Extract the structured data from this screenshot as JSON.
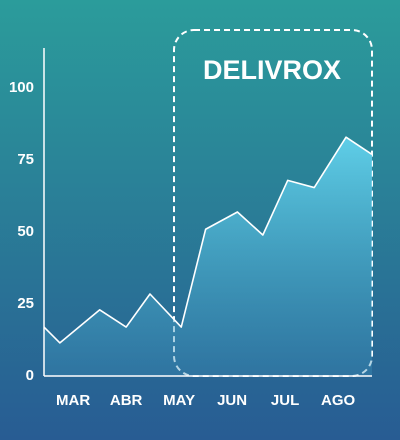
{
  "chart_data": {
    "type": "area",
    "title": "DELIVROX",
    "x": [
      2.45,
      2.75,
      3.5,
      4.0,
      4.45,
      5.04,
      5.5,
      6.1,
      6.58,
      7.05,
      7.55,
      8.15,
      8.64
    ],
    "values": [
      17,
      11.5,
      23,
      17,
      28.5,
      17,
      51,
      57,
      49,
      68,
      65.5,
      83,
      77
    ],
    "color": "#ffffff",
    "xlim": [
      2.45,
      8.64
    ],
    "xticks": [
      {
        "value": 3,
        "label": "MAR"
      },
      {
        "value": 4,
        "label": "ABR"
      },
      {
        "value": 5,
        "label": "MAY"
      },
      {
        "value": 6,
        "label": "JUN"
      },
      {
        "value": 7,
        "label": "JUL"
      },
      {
        "value": 8,
        "label": "AGO"
      }
    ],
    "ylim": [
      0,
      114
    ],
    "yticks": [
      0,
      25,
      50,
      75,
      100
    ]
  }
}
